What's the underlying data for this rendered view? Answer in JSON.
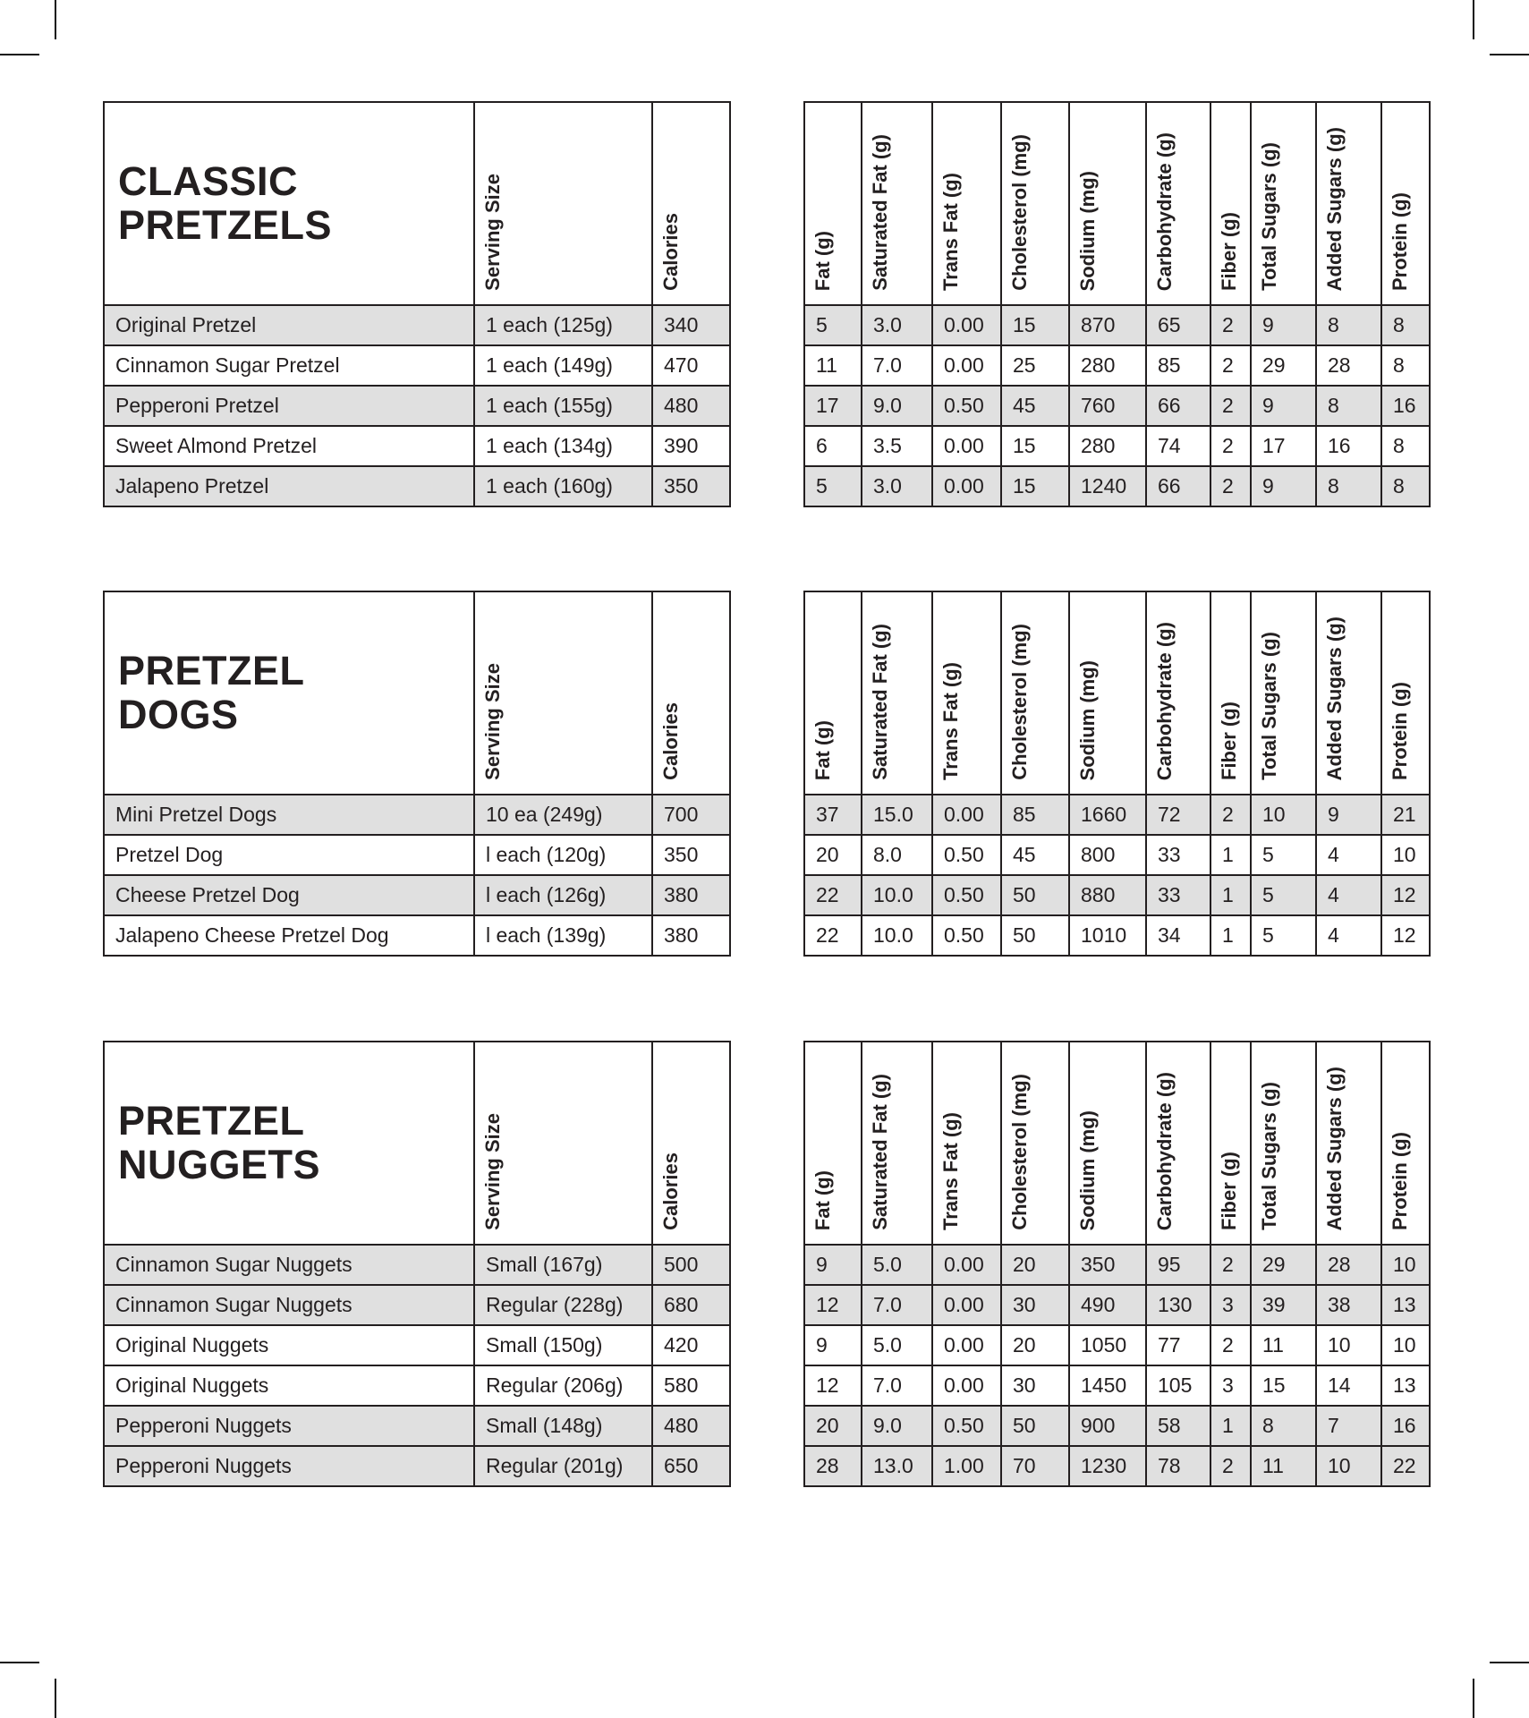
{
  "colors": {
    "background": "#ffffff",
    "text": "#231f20",
    "border": "#231f20",
    "row_shade": "#e0e0e0"
  },
  "left_headers": {
    "serving": "Serving Size",
    "calories": "Calories"
  },
  "nutrition_headers": [
    "Fat (g)",
    "Saturated Fat (g)",
    "Trans Fat (g)",
    "Cholesterol (mg)",
    "Sodium (mg)",
    "Carbohydrate (g)",
    "Fiber (g)",
    "Total Sugars (g)",
    "Added Sugars (g)",
    "Protein (g)"
  ],
  "sections": [
    {
      "title": "CLASSIC\nPRETZELS",
      "rows": [
        {
          "name": "Original Pretzel",
          "serving": "1 each (125g)",
          "calories": "340",
          "shaded": true,
          "values": [
            "5",
            "3.0",
            "0.00",
            "15",
            "870",
            "65",
            "2",
            "9",
            "8",
            "8"
          ]
        },
        {
          "name": "Cinnamon Sugar Pretzel",
          "serving": "1 each (149g)",
          "calories": "470",
          "shaded": false,
          "values": [
            "11",
            "7.0",
            "0.00",
            "25",
            "280",
            "85",
            "2",
            "29",
            "28",
            "8"
          ]
        },
        {
          "name": "Pepperoni Pretzel",
          "serving": "1 each (155g)",
          "calories": "480",
          "shaded": true,
          "values": [
            "17",
            "9.0",
            "0.50",
            "45",
            "760",
            "66",
            "2",
            "9",
            "8",
            "16"
          ]
        },
        {
          "name": "Sweet Almond Pretzel",
          "serving": "1 each (134g)",
          "calories": "390",
          "shaded": false,
          "values": [
            "6",
            "3.5",
            "0.00",
            "15",
            "280",
            "74",
            "2",
            "17",
            "16",
            "8"
          ]
        },
        {
          "name": "Jalapeno Pretzel",
          "serving": "1 each (160g)",
          "calories": "350",
          "shaded": true,
          "values": [
            "5",
            "3.0",
            "0.00",
            "15",
            "1240",
            "66",
            "2",
            "9",
            "8",
            "8"
          ]
        }
      ]
    },
    {
      "title": "PRETZEL\nDOGS",
      "rows": [
        {
          "name": "Mini Pretzel Dogs",
          "serving": "10 ea (249g)",
          "calories": "700",
          "shaded": true,
          "values": [
            "37",
            "15.0",
            "0.00",
            "85",
            "1660",
            "72",
            "2",
            "10",
            "9",
            "21"
          ]
        },
        {
          "name": "Pretzel Dog",
          "serving": "l each (120g)",
          "calories": "350",
          "shaded": false,
          "values": [
            "20",
            "8.0",
            "0.50",
            "45",
            "800",
            "33",
            "1",
            "5",
            "4",
            "10"
          ]
        },
        {
          "name": "Cheese Pretzel Dog",
          "serving": "l each (126g)",
          "calories": "380",
          "shaded": true,
          "values": [
            "22",
            "10.0",
            "0.50",
            "50",
            "880",
            "33",
            "1",
            "5",
            "4",
            "12"
          ]
        },
        {
          "name": "Jalapeno Cheese Pretzel Dog",
          "serving": "l each (139g)",
          "calories": "380",
          "shaded": false,
          "values": [
            "22",
            "10.0",
            "0.50",
            "50",
            "1010",
            "34",
            "1",
            "5",
            "4",
            "12"
          ]
        }
      ]
    },
    {
      "title": "PRETZEL\nNUGGETS",
      "rows": [
        {
          "name": "Cinnamon Sugar Nuggets",
          "serving": "Small (167g)",
          "calories": "500",
          "shaded": true,
          "values": [
            "9",
            "5.0",
            "0.00",
            "20",
            "350",
            "95",
            "2",
            "29",
            "28",
            "10"
          ]
        },
        {
          "name": "Cinnamon Sugar Nuggets",
          "serving": "Regular (228g)",
          "calories": "680",
          "shaded": true,
          "values": [
            "12",
            "7.0",
            "0.00",
            "30",
            "490",
            "130",
            "3",
            "39",
            "38",
            "13"
          ]
        },
        {
          "name": "Original Nuggets",
          "serving": "Small (150g)",
          "calories": "420",
          "shaded": false,
          "values": [
            "9",
            "5.0",
            "0.00",
            "20",
            "1050",
            "77",
            "2",
            "11",
            "10",
            "10"
          ]
        },
        {
          "name": "Original Nuggets",
          "serving": "Regular (206g)",
          "calories": "580",
          "shaded": false,
          "values": [
            "12",
            "7.0",
            "0.00",
            "30",
            "1450",
            "105",
            "3",
            "15",
            "14",
            "13"
          ]
        },
        {
          "name": "Pepperoni Nuggets",
          "serving": "Small (148g)",
          "calories": "480",
          "shaded": true,
          "values": [
            "20",
            "9.0",
            "0.50",
            "50",
            "900",
            "58",
            "1",
            "8",
            "7",
            "16"
          ]
        },
        {
          "name": "Pepperoni Nuggets",
          "serving": "Regular (201g)",
          "calories": "650",
          "shaded": true,
          "values": [
            "28",
            "13.0",
            "1.00",
            "70",
            "1230",
            "78",
            "2",
            "11",
            "10",
            "22"
          ]
        }
      ]
    }
  ]
}
